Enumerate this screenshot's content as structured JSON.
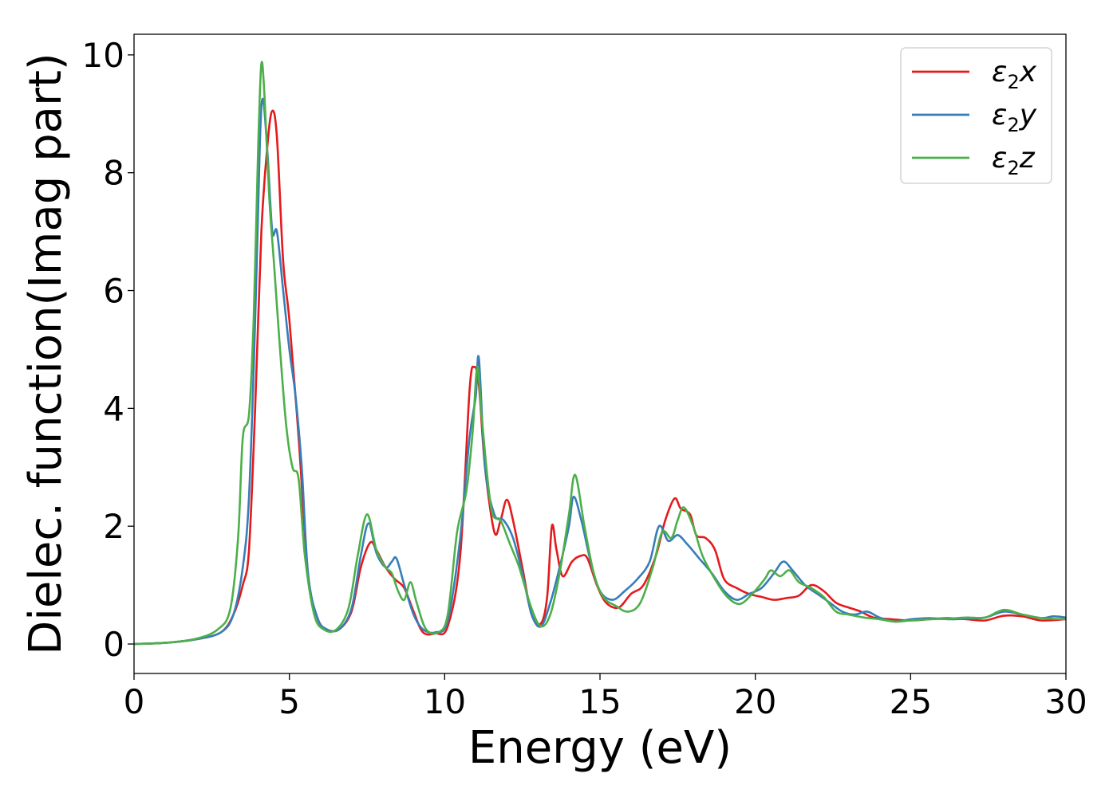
{
  "chart_data": {
    "type": "line",
    "title": "",
    "xlabel": "Energy (eV)",
    "ylabel": "Dielec. function(Imag part)",
    "xlim": [
      0,
      30
    ],
    "ylim": [
      -0.5,
      10.35
    ],
    "xticks": [
      0,
      5,
      10,
      15,
      20,
      25,
      30
    ],
    "yticks": [
      0,
      2,
      4,
      6,
      8,
      10
    ],
    "grid": false,
    "legend_position": "top-right",
    "series": [
      {
        "name": "ε₂x",
        "legend_main": "ε",
        "legend_sub": "2",
        "legend_var": "x",
        "color": "#e41a1c",
        "points": [
          [
            0,
            0
          ],
          [
            1,
            0.02
          ],
          [
            2,
            0.08
          ],
          [
            2.8,
            0.2
          ],
          [
            3.2,
            0.5
          ],
          [
            3.5,
            1.0
          ],
          [
            3.7,
            1.6
          ],
          [
            3.9,
            4.0
          ],
          [
            4.1,
            7.0
          ],
          [
            4.3,
            8.5
          ],
          [
            4.45,
            9.05
          ],
          [
            4.6,
            8.6
          ],
          [
            4.8,
            6.5
          ],
          [
            5.0,
            5.5
          ],
          [
            5.3,
            3.5
          ],
          [
            5.6,
            1.2
          ],
          [
            5.9,
            0.45
          ],
          [
            6.2,
            0.25
          ],
          [
            6.6,
            0.25
          ],
          [
            7.0,
            0.55
          ],
          [
            7.3,
            1.3
          ],
          [
            7.6,
            1.72
          ],
          [
            7.8,
            1.6
          ],
          [
            8.1,
            1.3
          ],
          [
            8.4,
            1.1
          ],
          [
            8.7,
            0.95
          ],
          [
            9.0,
            0.55
          ],
          [
            9.3,
            0.2
          ],
          [
            9.7,
            0.18
          ],
          [
            10.1,
            0.3
          ],
          [
            10.5,
            1.5
          ],
          [
            10.8,
            4.3
          ],
          [
            10.95,
            4.7
          ],
          [
            11.1,
            4.4
          ],
          [
            11.3,
            3.0
          ],
          [
            11.6,
            1.9
          ],
          [
            11.8,
            2.1
          ],
          [
            12.0,
            2.45
          ],
          [
            12.2,
            2.1
          ],
          [
            12.5,
            1.3
          ],
          [
            12.8,
            0.5
          ],
          [
            13.1,
            0.35
          ],
          [
            13.3,
            0.8
          ],
          [
            13.45,
            2.0
          ],
          [
            13.6,
            1.6
          ],
          [
            13.8,
            1.15
          ],
          [
            14.1,
            1.4
          ],
          [
            14.4,
            1.5
          ],
          [
            14.6,
            1.45
          ],
          [
            14.9,
            1.0
          ],
          [
            15.2,
            0.7
          ],
          [
            15.6,
            0.62
          ],
          [
            16.0,
            0.85
          ],
          [
            16.4,
            1.0
          ],
          [
            16.8,
            1.5
          ],
          [
            17.1,
            2.1
          ],
          [
            17.4,
            2.47
          ],
          [
            17.6,
            2.3
          ],
          [
            17.9,
            2.2
          ],
          [
            18.1,
            1.85
          ],
          [
            18.4,
            1.8
          ],
          [
            18.7,
            1.6
          ],
          [
            19.0,
            1.1
          ],
          [
            19.4,
            0.95
          ],
          [
            19.8,
            0.85
          ],
          [
            20.2,
            0.8
          ],
          [
            20.6,
            0.75
          ],
          [
            21.0,
            0.78
          ],
          [
            21.4,
            0.82
          ],
          [
            21.8,
            1.0
          ],
          [
            22.2,
            0.9
          ],
          [
            22.6,
            0.7
          ],
          [
            23.0,
            0.62
          ],
          [
            23.4,
            0.55
          ],
          [
            23.8,
            0.45
          ],
          [
            24.4,
            0.42
          ],
          [
            25.0,
            0.4
          ],
          [
            25.6,
            0.42
          ],
          [
            26.2,
            0.44
          ],
          [
            26.8,
            0.42
          ],
          [
            27.4,
            0.4
          ],
          [
            28.0,
            0.48
          ],
          [
            28.6,
            0.47
          ],
          [
            29.2,
            0.4
          ],
          [
            30.0,
            0.42
          ]
        ]
      },
      {
        "name": "ε₂y",
        "legend_main": "ε",
        "legend_sub": "2",
        "legend_var": "y",
        "color": "#377eb8",
        "points": [
          [
            0,
            0
          ],
          [
            1,
            0.02
          ],
          [
            2,
            0.08
          ],
          [
            2.8,
            0.2
          ],
          [
            3.2,
            0.5
          ],
          [
            3.5,
            1.3
          ],
          [
            3.7,
            2.5
          ],
          [
            3.9,
            5.5
          ],
          [
            4.05,
            8.5
          ],
          [
            4.15,
            9.25
          ],
          [
            4.3,
            8.3
          ],
          [
            4.45,
            7.0
          ],
          [
            4.6,
            7.0
          ],
          [
            4.8,
            6.0
          ],
          [
            5.0,
            5.0
          ],
          [
            5.2,
            4.2
          ],
          [
            5.4,
            3.0
          ],
          [
            5.6,
            1.2
          ],
          [
            5.9,
            0.45
          ],
          [
            6.2,
            0.25
          ],
          [
            6.6,
            0.25
          ],
          [
            7.0,
            0.6
          ],
          [
            7.3,
            1.5
          ],
          [
            7.55,
            2.05
          ],
          [
            7.8,
            1.55
          ],
          [
            8.1,
            1.3
          ],
          [
            8.3,
            1.4
          ],
          [
            8.45,
            1.45
          ],
          [
            8.7,
            1.0
          ],
          [
            9.0,
            0.5
          ],
          [
            9.3,
            0.25
          ],
          [
            9.7,
            0.2
          ],
          [
            10.1,
            0.4
          ],
          [
            10.5,
            1.8
          ],
          [
            10.8,
            3.5
          ],
          [
            11.0,
            4.2
          ],
          [
            11.1,
            4.85
          ],
          [
            11.3,
            3.0
          ],
          [
            11.6,
            2.2
          ],
          [
            11.9,
            2.1
          ],
          [
            12.2,
            1.8
          ],
          [
            12.5,
            1.2
          ],
          [
            12.8,
            0.5
          ],
          [
            13.1,
            0.3
          ],
          [
            13.4,
            0.7
          ],
          [
            13.7,
            1.3
          ],
          [
            14.0,
            2.0
          ],
          [
            14.15,
            2.5
          ],
          [
            14.4,
            2.1
          ],
          [
            14.7,
            1.4
          ],
          [
            15.0,
            0.9
          ],
          [
            15.4,
            0.75
          ],
          [
            15.8,
            0.9
          ],
          [
            16.2,
            1.1
          ],
          [
            16.6,
            1.4
          ],
          [
            16.9,
            2.0
          ],
          [
            17.2,
            1.75
          ],
          [
            17.5,
            1.85
          ],
          [
            17.8,
            1.7
          ],
          [
            18.2,
            1.45
          ],
          [
            18.6,
            1.2
          ],
          [
            19.0,
            0.9
          ],
          [
            19.4,
            0.75
          ],
          [
            19.8,
            0.85
          ],
          [
            20.2,
            0.95
          ],
          [
            20.6,
            1.2
          ],
          [
            20.9,
            1.4
          ],
          [
            21.2,
            1.25
          ],
          [
            21.6,
            1.0
          ],
          [
            22.0,
            0.85
          ],
          [
            22.4,
            0.7
          ],
          [
            22.8,
            0.55
          ],
          [
            23.2,
            0.5
          ],
          [
            23.6,
            0.55
          ],
          [
            24.0,
            0.45
          ],
          [
            24.5,
            0.38
          ],
          [
            25.0,
            0.42
          ],
          [
            25.6,
            0.44
          ],
          [
            26.2,
            0.42
          ],
          [
            26.8,
            0.43
          ],
          [
            27.4,
            0.45
          ],
          [
            28.0,
            0.55
          ],
          [
            28.6,
            0.5
          ],
          [
            29.2,
            0.44
          ],
          [
            29.6,
            0.47
          ],
          [
            30.0,
            0.45
          ]
        ]
      },
      {
        "name": "ε₂z",
        "legend_main": "ε",
        "legend_sub": "2",
        "legend_var": "z",
        "color": "#4daf4a",
        "points": [
          [
            0,
            0
          ],
          [
            1,
            0.02
          ],
          [
            2,
            0.09
          ],
          [
            2.7,
            0.25
          ],
          [
            3.1,
            0.6
          ],
          [
            3.35,
            1.8
          ],
          [
            3.5,
            3.5
          ],
          [
            3.7,
            3.9
          ],
          [
            3.85,
            5.5
          ],
          [
            4.0,
            8.5
          ],
          [
            4.1,
            9.85
          ],
          [
            4.2,
            9.3
          ],
          [
            4.35,
            7.6
          ],
          [
            4.5,
            6.5
          ],
          [
            4.7,
            5.0
          ],
          [
            4.9,
            3.7
          ],
          [
            5.1,
            3.0
          ],
          [
            5.3,
            2.8
          ],
          [
            5.5,
            1.5
          ],
          [
            5.8,
            0.5
          ],
          [
            6.1,
            0.25
          ],
          [
            6.5,
            0.24
          ],
          [
            6.9,
            0.6
          ],
          [
            7.2,
            1.5
          ],
          [
            7.5,
            2.2
          ],
          [
            7.8,
            1.6
          ],
          [
            8.1,
            1.3
          ],
          [
            8.3,
            1.2
          ],
          [
            8.5,
            0.9
          ],
          [
            8.7,
            0.75
          ],
          [
            8.9,
            1.05
          ],
          [
            9.1,
            0.7
          ],
          [
            9.4,
            0.25
          ],
          [
            9.8,
            0.2
          ],
          [
            10.1,
            0.5
          ],
          [
            10.4,
            1.9
          ],
          [
            10.7,
            2.6
          ],
          [
            10.9,
            3.6
          ],
          [
            11.05,
            4.7
          ],
          [
            11.2,
            3.8
          ],
          [
            11.5,
            2.3
          ],
          [
            11.8,
            2.1
          ],
          [
            12.1,
            1.7
          ],
          [
            12.4,
            1.3
          ],
          [
            12.8,
            0.6
          ],
          [
            13.1,
            0.3
          ],
          [
            13.4,
            0.5
          ],
          [
            13.7,
            1.2
          ],
          [
            14.0,
            2.2
          ],
          [
            14.2,
            2.87
          ],
          [
            14.5,
            2.0
          ],
          [
            14.8,
            1.2
          ],
          [
            15.1,
            0.8
          ],
          [
            15.5,
            0.65
          ],
          [
            15.9,
            0.55
          ],
          [
            16.3,
            0.7
          ],
          [
            16.7,
            1.3
          ],
          [
            17.0,
            1.9
          ],
          [
            17.3,
            1.8
          ],
          [
            17.5,
            2.1
          ],
          [
            17.7,
            2.32
          ],
          [
            18.0,
            2.0
          ],
          [
            18.3,
            1.5
          ],
          [
            18.7,
            1.1
          ],
          [
            19.1,
            0.8
          ],
          [
            19.5,
            0.68
          ],
          [
            19.9,
            0.85
          ],
          [
            20.3,
            1.1
          ],
          [
            20.5,
            1.25
          ],
          [
            20.8,
            1.15
          ],
          [
            21.1,
            1.25
          ],
          [
            21.4,
            1.05
          ],
          [
            21.8,
            0.95
          ],
          [
            22.2,
            0.8
          ],
          [
            22.6,
            0.55
          ],
          [
            23.0,
            0.5
          ],
          [
            23.5,
            0.45
          ],
          [
            24.0,
            0.42
          ],
          [
            24.5,
            0.38
          ],
          [
            25.0,
            0.4
          ],
          [
            25.6,
            0.42
          ],
          [
            26.2,
            0.43
          ],
          [
            26.8,
            0.45
          ],
          [
            27.4,
            0.45
          ],
          [
            28.0,
            0.58
          ],
          [
            28.6,
            0.5
          ],
          [
            29.2,
            0.44
          ],
          [
            30.0,
            0.42
          ]
        ]
      }
    ]
  }
}
